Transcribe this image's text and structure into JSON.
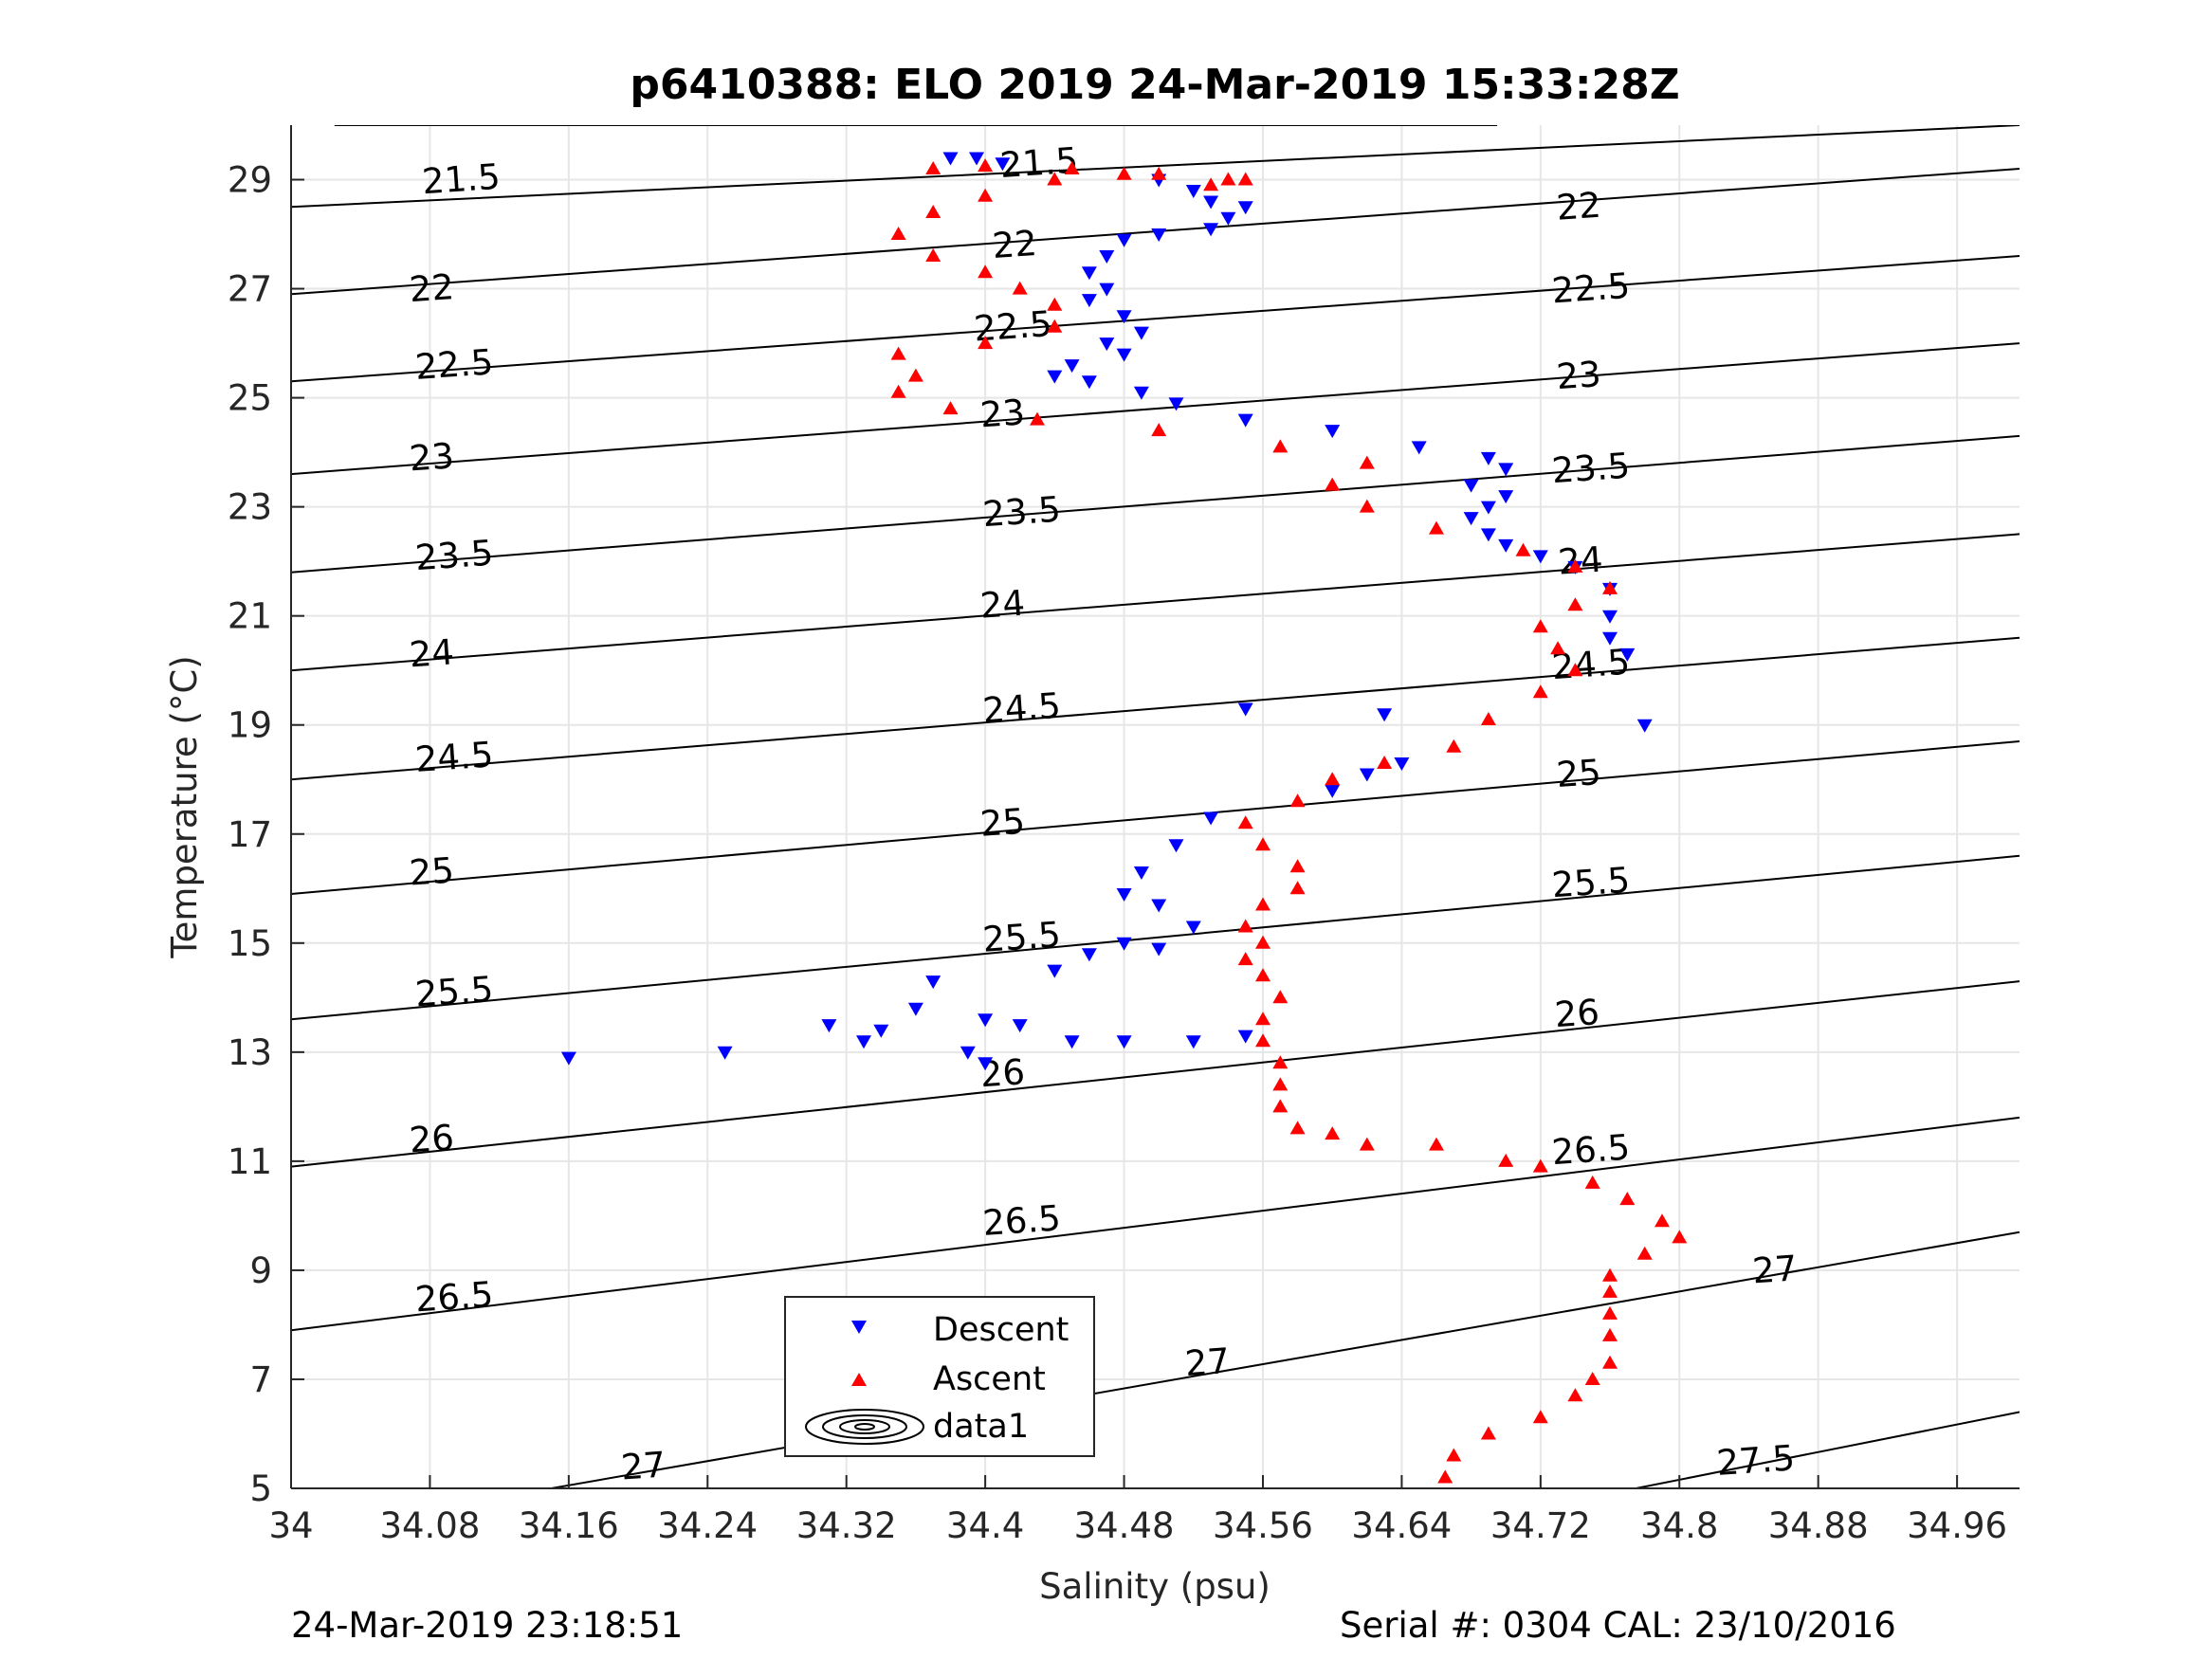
{
  "chart_data": {
    "type": "scatter",
    "title": "p6410388: ELO 2019 24-Mar-2019 15:33:28Z",
    "xlabel": "Salinity (psu)",
    "ylabel": "Temperature (°C)",
    "xlim": [
      34.0,
      34.996
    ],
    "ylim": [
      5,
      30
    ],
    "xticks": [
      "34",
      "34.08",
      "34.16",
      "34.24",
      "34.32",
      "34.4",
      "34.48",
      "34.56",
      "34.64",
      "34.72",
      "34.8",
      "34.88",
      "34.96"
    ],
    "xtick_values": [
      34.0,
      34.08,
      34.16,
      34.24,
      34.32,
      34.4,
      34.48,
      34.56,
      34.64,
      34.72,
      34.8,
      34.88,
      34.96
    ],
    "yticks": [
      "5",
      "7",
      "9",
      "11",
      "13",
      "15",
      "17",
      "19",
      "21",
      "23",
      "25",
      "27",
      "29"
    ],
    "ytick_values": [
      5,
      7,
      9,
      11,
      13,
      15,
      17,
      19,
      21,
      23,
      25,
      27,
      29
    ],
    "grid": true,
    "legend_position": "bottom-center",
    "legend": [
      "Descent",
      "Ascent",
      "data1"
    ],
    "colors": {
      "descent": "#0000ff",
      "ascent": "#ff0000",
      "contour": "#000000",
      "grid": "#e6e6e6"
    },
    "density_contours": [
      {
        "label": "21.5",
        "line": [
          [
            34.025,
            30.0
          ],
          [
            34.695,
            30.0
          ]
        ]
      },
      {
        "label": "21.5",
        "line": [
          [
            34.0,
            28.5
          ],
          [
            34.996,
            30.0
          ]
        ]
      },
      {
        "label": "22",
        "line": [
          [
            34.0,
            26.9
          ],
          [
            34.996,
            29.2
          ]
        ]
      },
      {
        "label": "22.5",
        "line": [
          [
            34.0,
            25.3
          ],
          [
            34.996,
            27.6
          ]
        ]
      },
      {
        "label": "23",
        "line": [
          [
            34.0,
            23.6
          ],
          [
            34.996,
            26.0
          ]
        ]
      },
      {
        "label": "23.5",
        "line": [
          [
            34.0,
            21.8
          ],
          [
            34.996,
            24.3
          ]
        ]
      },
      {
        "label": "24",
        "line": [
          [
            34.0,
            20.0
          ],
          [
            34.996,
            22.5
          ]
        ]
      },
      {
        "label": "24.5",
        "line": [
          [
            34.0,
            18.0
          ],
          [
            34.996,
            20.6
          ]
        ]
      },
      {
        "label": "25",
        "line": [
          [
            34.0,
            15.9
          ],
          [
            34.996,
            18.7
          ]
        ]
      },
      {
        "label": "25.5",
        "line": [
          [
            34.0,
            13.6
          ],
          [
            34.996,
            16.6
          ]
        ]
      },
      {
        "label": "26",
        "line": [
          [
            34.0,
            10.9
          ],
          [
            34.996,
            14.3
          ]
        ]
      },
      {
        "label": "26.5",
        "line": [
          [
            34.0,
            7.9
          ],
          [
            34.996,
            11.8
          ]
        ]
      },
      {
        "label": "27",
        "line": [
          [
            34.15,
            5.0
          ],
          [
            34.996,
            9.7
          ]
        ]
      },
      {
        "label": "27.5",
        "line": [
          [
            34.775,
            5.0
          ],
          [
            34.996,
            6.4
          ]
        ]
      }
    ],
    "contour_labels": [
      {
        "text": "21.5",
        "x": 34.098,
        "y": 29.0
      },
      {
        "text": "21.5",
        "x": 34.431,
        "y": 29.3
      },
      {
        "text": "22",
        "x": 34.081,
        "y": 27.0
      },
      {
        "text": "22",
        "x": 34.417,
        "y": 27.8
      },
      {
        "text": "22",
        "x": 34.742,
        "y": 28.5
      },
      {
        "text": "22.5",
        "x": 34.094,
        "y": 25.6
      },
      {
        "text": "22.5",
        "x": 34.416,
        "y": 26.3
      },
      {
        "text": "22.5",
        "x": 34.749,
        "y": 27.0
      },
      {
        "text": "23",
        "x": 34.081,
        "y": 23.9
      },
      {
        "text": "23",
        "x": 34.41,
        "y": 24.7
      },
      {
        "text": "23",
        "x": 34.742,
        "y": 25.4
      },
      {
        "text": "23.5",
        "x": 34.094,
        "y": 22.1
      },
      {
        "text": "23.5",
        "x": 34.421,
        "y": 22.9
      },
      {
        "text": "23.5",
        "x": 34.749,
        "y": 23.7
      },
      {
        "text": "24",
        "x": 34.081,
        "y": 20.3
      },
      {
        "text": "24",
        "x": 34.41,
        "y": 21.2
      },
      {
        "text": "24",
        "x": 34.743,
        "y": 22.0
      },
      {
        "text": "24.5",
        "x": 34.094,
        "y": 18.4
      },
      {
        "text": "24.5",
        "x": 34.421,
        "y": 19.3
      },
      {
        "text": "24.5",
        "x": 34.749,
        "y": 20.1
      },
      {
        "text": "25",
        "x": 34.081,
        "y": 16.3
      },
      {
        "text": "25",
        "x": 34.41,
        "y": 17.2
      },
      {
        "text": "25",
        "x": 34.742,
        "y": 18.1
      },
      {
        "text": "25.5",
        "x": 34.094,
        "y": 14.1
      },
      {
        "text": "25.5",
        "x": 34.421,
        "y": 15.1
      },
      {
        "text": "25.5",
        "x": 34.749,
        "y": 16.1
      },
      {
        "text": "26",
        "x": 34.081,
        "y": 11.4
      },
      {
        "text": "26",
        "x": 34.41,
        "y": 12.6
      },
      {
        "text": "26",
        "x": 34.741,
        "y": 13.7
      },
      {
        "text": "26.5",
        "x": 34.094,
        "y": 8.5
      },
      {
        "text": "26.5",
        "x": 34.421,
        "y": 9.9
      },
      {
        "text": "26.5",
        "x": 34.749,
        "y": 11.2
      },
      {
        "text": "27",
        "x": 34.203,
        "y": 5.4
      },
      {
        "text": "27",
        "x": 34.528,
        "y": 7.3
      },
      {
        "text": "27",
        "x": 34.855,
        "y": 9.0
      },
      {
        "text": "27.5",
        "x": 34.844,
        "y": 5.5
      }
    ],
    "series": [
      {
        "name": "Descent",
        "marker": "triangle-down",
        "points": [
          [
            34.38,
            29.4
          ],
          [
            34.395,
            29.4
          ],
          [
            34.41,
            29.3
          ],
          [
            34.5,
            29.0
          ],
          [
            34.52,
            28.8
          ],
          [
            34.53,
            28.6
          ],
          [
            34.55,
            28.5
          ],
          [
            34.54,
            28.3
          ],
          [
            34.53,
            28.1
          ],
          [
            34.5,
            28.0
          ],
          [
            34.48,
            27.9
          ],
          [
            34.47,
            27.6
          ],
          [
            34.46,
            27.3
          ],
          [
            34.47,
            27.0
          ],
          [
            34.46,
            26.8
          ],
          [
            34.48,
            26.5
          ],
          [
            34.49,
            26.2
          ],
          [
            34.47,
            26.0
          ],
          [
            34.48,
            25.8
          ],
          [
            34.45,
            25.6
          ],
          [
            34.44,
            25.4
          ],
          [
            34.46,
            25.3
          ],
          [
            34.49,
            25.1
          ],
          [
            34.51,
            24.9
          ],
          [
            34.55,
            24.6
          ],
          [
            34.6,
            24.4
          ],
          [
            34.65,
            24.1
          ],
          [
            34.69,
            23.9
          ],
          [
            34.7,
            23.7
          ],
          [
            34.68,
            23.4
          ],
          [
            34.7,
            23.2
          ],
          [
            34.69,
            23.0
          ],
          [
            34.68,
            22.8
          ],
          [
            34.69,
            22.5
          ],
          [
            34.7,
            22.3
          ],
          [
            34.72,
            22.1
          ],
          [
            34.74,
            21.9
          ],
          [
            34.76,
            21.5
          ],
          [
            34.76,
            21.0
          ],
          [
            34.76,
            20.6
          ],
          [
            34.77,
            20.3
          ],
          [
            34.78,
            19.0
          ],
          [
            34.55,
            19.3
          ],
          [
            34.63,
            19.2
          ],
          [
            34.64,
            18.3
          ],
          [
            34.62,
            18.1
          ],
          [
            34.6,
            17.8
          ],
          [
            34.53,
            17.3
          ],
          [
            34.51,
            16.8
          ],
          [
            34.49,
            16.3
          ],
          [
            34.48,
            15.9
          ],
          [
            34.5,
            15.7
          ],
          [
            34.52,
            15.3
          ],
          [
            34.48,
            15.0
          ],
          [
            34.5,
            14.9
          ],
          [
            34.46,
            14.8
          ],
          [
            34.44,
            14.5
          ],
          [
            34.37,
            14.3
          ],
          [
            34.36,
            13.8
          ],
          [
            34.34,
            13.4
          ],
          [
            34.4,
            13.6
          ],
          [
            34.42,
            13.5
          ],
          [
            34.45,
            13.2
          ],
          [
            34.48,
            13.2
          ],
          [
            34.52,
            13.2
          ],
          [
            34.55,
            13.3
          ],
          [
            34.4,
            12.8
          ],
          [
            34.39,
            13.0
          ],
          [
            34.16,
            12.9
          ],
          [
            34.25,
            13.0
          ],
          [
            34.31,
            13.5
          ],
          [
            34.33,
            13.2
          ]
        ]
      },
      {
        "name": "Ascent",
        "marker": "triangle-up",
        "points": [
          [
            34.665,
            5.2
          ],
          [
            34.67,
            5.6
          ],
          [
            34.69,
            6.0
          ],
          [
            34.72,
            6.3
          ],
          [
            34.74,
            6.7
          ],
          [
            34.75,
            7.0
          ],
          [
            34.76,
            7.3
          ],
          [
            34.76,
            7.8
          ],
          [
            34.76,
            8.2
          ],
          [
            34.76,
            8.6
          ],
          [
            34.76,
            8.9
          ],
          [
            34.78,
            9.3
          ],
          [
            34.8,
            9.6
          ],
          [
            34.79,
            9.9
          ],
          [
            34.77,
            10.3
          ],
          [
            34.75,
            10.6
          ],
          [
            34.72,
            10.9
          ],
          [
            34.7,
            11.0
          ],
          [
            34.66,
            11.3
          ],
          [
            34.62,
            11.3
          ],
          [
            34.6,
            11.5
          ],
          [
            34.58,
            11.6
          ],
          [
            34.57,
            12.0
          ],
          [
            34.57,
            12.4
          ],
          [
            34.57,
            12.8
          ],
          [
            34.56,
            13.2
          ],
          [
            34.56,
            13.6
          ],
          [
            34.57,
            14.0
          ],
          [
            34.56,
            14.4
          ],
          [
            34.55,
            14.7
          ],
          [
            34.56,
            15.0
          ],
          [
            34.55,
            15.3
          ],
          [
            34.56,
            15.7
          ],
          [
            34.58,
            16.0
          ],
          [
            34.58,
            16.4
          ],
          [
            34.56,
            16.8
          ],
          [
            34.55,
            17.2
          ],
          [
            34.58,
            17.6
          ],
          [
            34.6,
            18.0
          ],
          [
            34.63,
            18.3
          ],
          [
            34.67,
            18.6
          ],
          [
            34.69,
            19.1
          ],
          [
            34.72,
            19.6
          ],
          [
            34.74,
            20.0
          ],
          [
            34.73,
            20.4
          ],
          [
            34.72,
            20.8
          ],
          [
            34.74,
            21.2
          ],
          [
            34.76,
            21.5
          ],
          [
            34.74,
            21.9
          ],
          [
            34.71,
            22.2
          ],
          [
            34.66,
            22.6
          ],
          [
            34.62,
            23.0
          ],
          [
            34.6,
            23.4
          ],
          [
            34.62,
            23.8
          ],
          [
            34.57,
            24.1
          ],
          [
            34.5,
            24.4
          ],
          [
            34.43,
            24.6
          ],
          [
            34.38,
            24.8
          ],
          [
            34.35,
            25.1
          ],
          [
            34.36,
            25.4
          ],
          [
            34.35,
            25.8
          ],
          [
            34.4,
            26.0
          ],
          [
            34.44,
            26.3
          ],
          [
            34.44,
            26.7
          ],
          [
            34.42,
            27.0
          ],
          [
            34.4,
            27.3
          ],
          [
            34.37,
            27.6
          ],
          [
            34.35,
            28.0
          ],
          [
            34.37,
            28.4
          ],
          [
            34.4,
            28.7
          ],
          [
            34.44,
            29.0
          ],
          [
            34.48,
            29.1
          ],
          [
            34.5,
            29.1
          ],
          [
            34.45,
            29.2
          ],
          [
            34.4,
            29.25
          ],
          [
            34.37,
            29.2
          ],
          [
            34.53,
            28.9
          ],
          [
            34.54,
            29.0
          ],
          [
            34.55,
            29.0
          ]
        ]
      }
    ]
  },
  "footer": {
    "timestamp": "24-Mar-2019 23:18:51",
    "serial": "Serial #: 0304  CAL: 23/10/2016"
  }
}
